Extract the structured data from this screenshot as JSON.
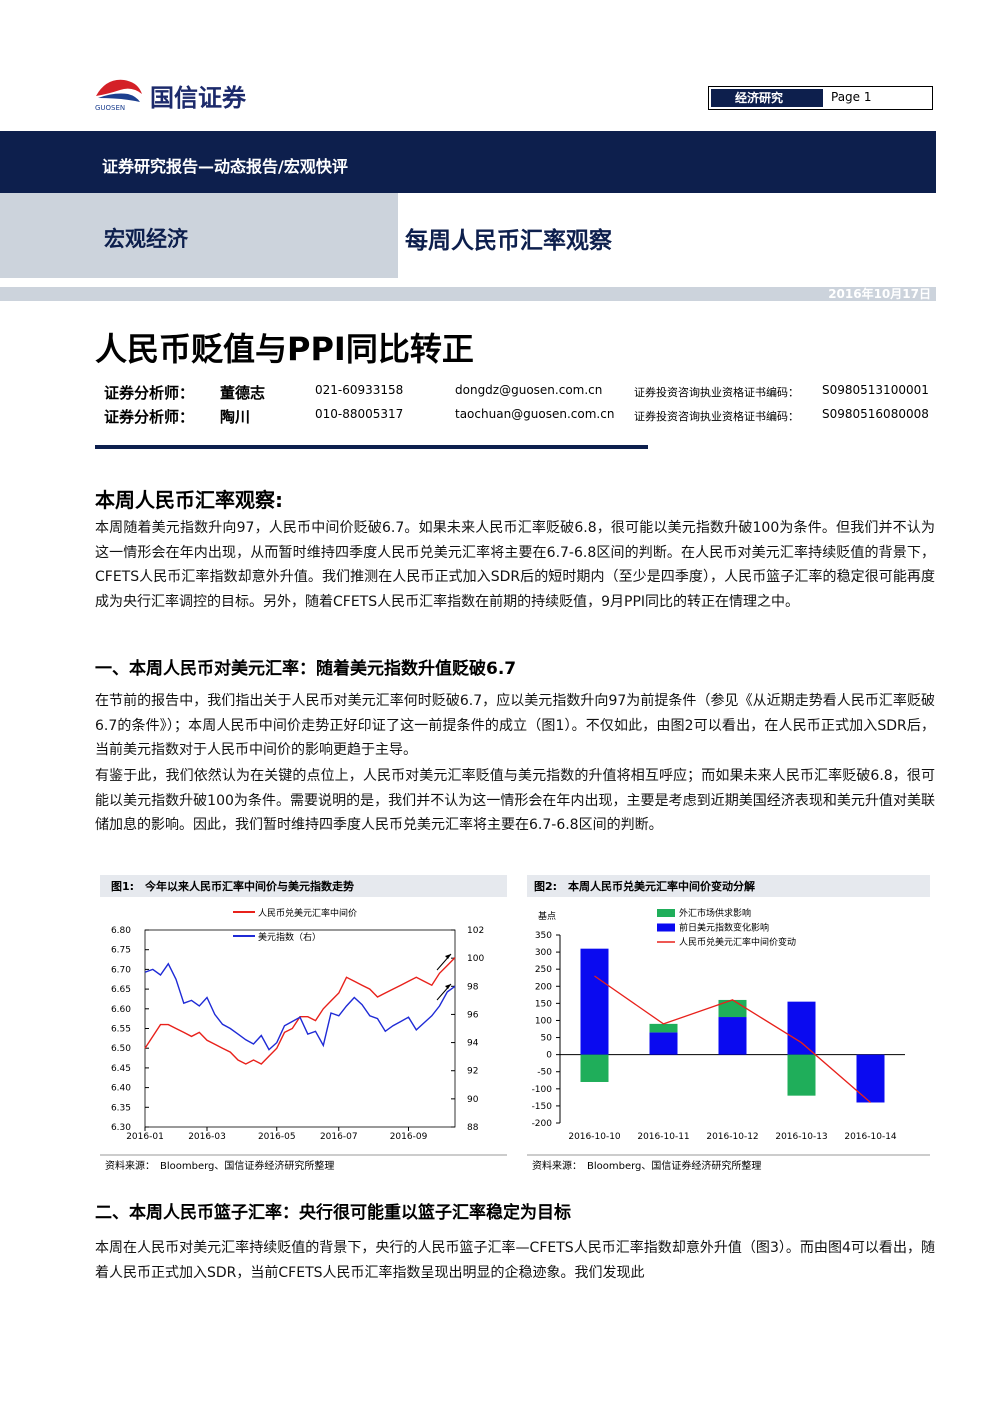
{
  "header": {
    "logo_text": "国信证券",
    "logo_sub": "GUOSEN",
    "section": "经济研究",
    "page": "Page 1"
  },
  "banner": "证券研究报告—动态报告/宏观快评",
  "category": "宏观经济",
  "series_title": "每周人民币汇率观察",
  "date": "2016年10月17日",
  "title": "人民币贬值与PPI同比转正",
  "analysts": [
    {
      "role": "证券分析师：",
      "name": "董德志",
      "phone": "021-60933158",
      "email": "dongdz@guosen.com.cn",
      "cert_label": "证券投资咨询执业资格证书编码：",
      "cert": "S0980513100001"
    },
    {
      "role": "证券分析师：",
      "name": "陶川",
      "phone": "010-88005317",
      "email": "taochuan@guosen.com.cn",
      "cert_label": "证券投资咨询执业资格证书编码：",
      "cert": "S0980516080008"
    }
  ],
  "sections": [
    {
      "heading": "本周人民币汇率观察:",
      "paragraphs": [
        "本周随着美元指数升向97，人民币中间价贬破6.7。如果未来人民币汇率贬破6.8，很可能以美元指数升破100为条件。但我们并不认为这一情形会在年内出现，从而暂时维持四季度人民币兑美元汇率将主要在6.7-6.8区间的判断。在人民币对美元汇率持续贬值的背景下，CFETS人民币汇率指数却意外升值。我们推测在人民币正式加入SDR后的短时期内（至少是四季度），人民币篮子汇率的稳定很可能再度成为央行汇率调控的目标。另外，随着CFETS人民币汇率指数在前期的持续贬值，9月PPI同比的转正在情理之中。"
      ]
    },
    {
      "heading": "一、本周人民币对美元汇率：随着美元指数升值贬破6.7",
      "paragraphs": [
        "在节前的报告中，我们指出关于人民币对美元汇率何时贬破6.7，应以美元指数升向97为前提条件（参见《从近期走势看人民币汇率贬破6.7的条件》）；本周人民币中间价走势正好印证了这一前提条件的成立（图1）。不仅如此，由图2可以看出，在人民币正式加入SDR后，当前美元指数对于人民币中间价的影响更趋于主导。",
        "有鉴于此，我们依然认为在关键的点位上，人民币对美元汇率贬值与美元指数的升值将相互呼应；而如果未来人民币汇率贬破6.8，很可能以美元指数升破100为条件。需要说明的是，我们并不认为这一情形会在年内出现，主要是考虑到近期美国经济表现和美元升值对美联储加息的影响。因此，我们暂时维持四季度人民币兑美元汇率将主要在6.7-6.8区间的判断。"
      ]
    },
    {
      "heading": "二、本周人民币篮子汇率：央行很可能重以篮子汇率稳定为目标",
      "paragraphs": [
        "本周在人民币对美元汇率持续贬值的背景下，央行的人民币篮子汇率—CFETS人民币汇率指数却意外升值（图3）。而由图4可以看出，随着人民币正式加入SDR，当前CFETS人民币汇率指数呈现出明显的企稳迹象。我们发现此"
      ]
    }
  ],
  "chart_data": [
    {
      "type": "line",
      "title": "图1:　今年以来人民币汇率中间价与美元指数走势",
      "source": "资料来源：　Bloomberg、国信证券经济研究所整理",
      "categories": [
        "2016-01",
        null,
        null,
        null,
        null,
        null,
        null,
        null,
        "2016-03",
        null,
        null,
        null,
        null,
        null,
        null,
        null,
        null,
        "2016-05",
        null,
        null,
        null,
        null,
        null,
        null,
        null,
        "2016-07",
        null,
        null,
        null,
        null,
        null,
        null,
        null,
        null,
        "2016-09",
        null,
        null,
        null,
        null,
        null,
        null
      ],
      "series": [
        {
          "name": "人民币兑美元汇率中间价",
          "color": "#e8211b",
          "values": [
            6.5,
            6.53,
            6.56,
            6.56,
            6.55,
            6.54,
            6.53,
            6.54,
            6.52,
            6.51,
            6.5,
            6.49,
            6.47,
            6.46,
            6.47,
            6.46,
            6.48,
            6.5,
            6.54,
            6.55,
            6.58,
            6.58,
            6.57,
            6.6,
            6.62,
            6.64,
            6.68,
            6.67,
            6.66,
            6.65,
            6.63,
            6.64,
            6.65,
            6.66,
            6.67,
            6.68,
            6.67,
            6.66,
            6.69,
            6.71,
            6.73
          ]
        },
        {
          "name": "美元指数（右）",
          "color": "#1f2bd6",
          "axis": "y2",
          "values": [
            99.0,
            99.2,
            98.8,
            99.6,
            98.5,
            96.8,
            97.0,
            96.6,
            97.2,
            96.0,
            95.3,
            95.0,
            94.6,
            94.2,
            93.9,
            94.5,
            93.5,
            94.0,
            95.2,
            95.5,
            95.8,
            94.6,
            94.8,
            93.8,
            96.1,
            95.9,
            96.6,
            97.2,
            96.7,
            95.9,
            95.7,
            94.8,
            95.2,
            95.5,
            95.8,
            94.9,
            95.4,
            95.9,
            96.6,
            97.6,
            98.0
          ]
        }
      ],
      "ylim": [
        6.3,
        6.8
      ],
      "yticks": [
        {
          "value": 6.3,
          "label": "6.30"
        },
        6.35,
        {
          "value": 6.4,
          "label": "6.40"
        },
        6.45,
        {
          "value": 6.5,
          "label": "6.50"
        },
        6.55,
        {
          "value": 6.6,
          "label": "6.60"
        },
        6.65,
        {
          "value": 6.7,
          "label": "6.70"
        },
        6.75,
        {
          "value": 6.8,
          "label": "6.80"
        }
      ],
      "y2lim": [
        88,
        102
      ],
      "y2ticks": [
        88,
        90,
        92,
        94,
        96,
        98,
        100,
        102
      ]
    },
    {
      "type": "bar",
      "title": "图2:　本周人民币兑美元汇率中间价变动分解",
      "source": "资料来源：　Bloomberg、国信证券经济研究所整理",
      "y_label": "基点",
      "categories": [
        "2016-10-10",
        "2016-10-11",
        "2016-10-12",
        "2016-10-13",
        "2016-10-14"
      ],
      "series": [
        {
          "name": "外汇市场供求影响",
          "color": "#1fae5a",
          "values": [
            -80,
            25,
            50,
            -120,
            0
          ]
        },
        {
          "name": "前日美元指数变化影响",
          "color": "#0a0af0",
          "values": [
            310,
            65,
            110,
            155,
            -140
          ]
        },
        {
          "name": "人民币兑美元汇率中间价变动",
          "color": "#e8211b",
          "type": "line",
          "values": [
            230,
            90,
            160,
            35,
            -140
          ]
        }
      ],
      "ylim": [
        -200,
        350
      ],
      "yticks": [
        -200,
        -150,
        -100,
        -50,
        0,
        50,
        100,
        150,
        200,
        250,
        300,
        350
      ]
    }
  ]
}
